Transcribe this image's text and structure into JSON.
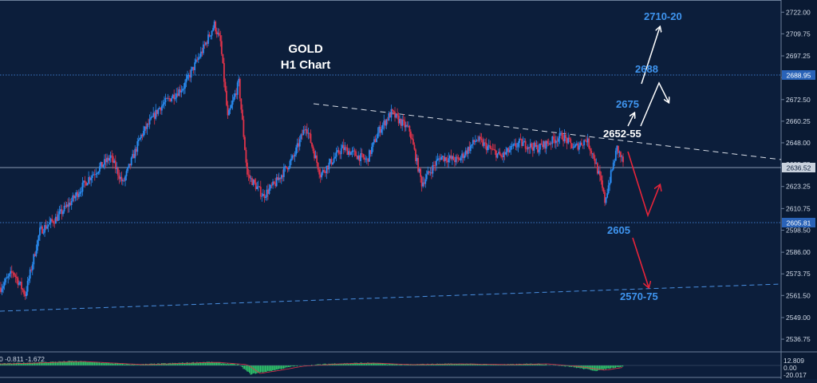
{
  "chart_data": {
    "type": "candlestick",
    "title": "GOLD",
    "subtitle": "H1 Chart",
    "price_axis": {
      "ticks": [
        "2722.00",
        "2709.75",
        "2697.25",
        "2685.00",
        "2672.50",
        "2660.25",
        "2648.00",
        "2635.75",
        "2623.25",
        "2610.75",
        "2598.50",
        "2586.00",
        "2573.75",
        "2561.50",
        "2549.00",
        "2536.75"
      ],
      "range": [
        2530,
        2728
      ]
    },
    "price_tags": {
      "upper": "2688.95",
      "current": "2636.52",
      "lower": "2605.81"
    },
    "annotations": {
      "target_top": "2710-20",
      "level_2688": "2688",
      "level_2675": "2675",
      "level_2652": "2652-55",
      "level_2605": "2605",
      "level_2570": "2570-75"
    },
    "indicator": {
      "label": "0 -0.811 -1.672",
      "ticks": [
        "12.809",
        "0.00",
        "-20.017"
      ]
    },
    "candle_count": 300,
    "anchors": [
      [
        0,
        2566
      ],
      [
        10,
        2575
      ],
      [
        20,
        2562
      ],
      [
        32,
        2598
      ],
      [
        45,
        2605
      ],
      [
        58,
        2615
      ],
      [
        72,
        2628
      ],
      [
        90,
        2640
      ],
      [
        100,
        2625
      ],
      [
        115,
        2652
      ],
      [
        130,
        2668
      ],
      [
        150,
        2680
      ],
      [
        165,
        2700
      ],
      [
        175,
        2715
      ],
      [
        180,
        2705
      ],
      [
        186,
        2662
      ],
      [
        195,
        2682
      ],
      [
        202,
        2630
      ],
      [
        215,
        2618
      ],
      [
        225,
        2625
      ],
      [
        240,
        2640
      ],
      [
        250,
        2658
      ],
      [
        262,
        2630
      ],
      [
        280,
        2645
      ],
      [
        300,
        2638
      ],
      [
        310,
        2655
      ],
      [
        320,
        2665
      ],
      [
        335,
        2655
      ],
      [
        345,
        2625
      ],
      [
        360,
        2640
      ],
      [
        375,
        2638
      ],
      [
        390,
        2650
      ],
      [
        410,
        2640
      ],
      [
        425,
        2648
      ],
      [
        440,
        2645
      ],
      [
        460,
        2652
      ],
      [
        470,
        2645
      ],
      [
        480,
        2650
      ],
      [
        486,
        2640
      ],
      [
        492,
        2625
      ],
      [
        495,
        2615
      ],
      [
        505,
        2645
      ],
      [
        510,
        2637
      ]
    ],
    "osc_anchors": [
      [
        0,
        2
      ],
      [
        60,
        5
      ],
      [
        110,
        1
      ],
      [
        170,
        4
      ],
      [
        195,
        1
      ],
      [
        205,
        -10
      ],
      [
        222,
        -6
      ],
      [
        240,
        -1
      ],
      [
        270,
        2
      ],
      [
        300,
        3
      ],
      [
        330,
        1
      ],
      [
        370,
        2
      ],
      [
        410,
        1
      ],
      [
        440,
        2
      ],
      [
        465,
        -1
      ],
      [
        488,
        -6
      ],
      [
        500,
        -3
      ],
      [
        510,
        -1
      ]
    ]
  }
}
